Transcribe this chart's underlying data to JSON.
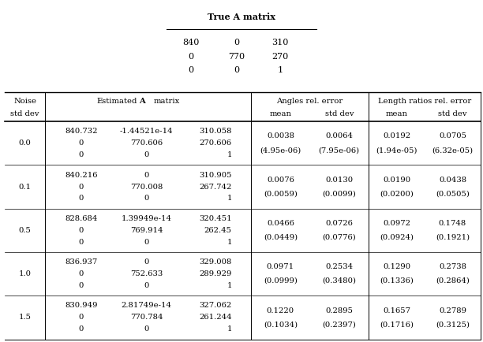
{
  "true_A_title": "True A matrix",
  "true_A_matrix": [
    [
      "840",
      "0",
      "310"
    ],
    [
      "0",
      "770",
      "270"
    ],
    [
      "0",
      "0",
      "1"
    ]
  ],
  "col_headers": {
    "noise": [
      "Noise",
      "std dev"
    ],
    "A": [
      "Estimated A matrix",
      ""
    ],
    "ang_mean": [
      "Angles rel. error",
      "mean"
    ],
    "ang_std": [
      "",
      "std dev"
    ],
    "len_mean": [
      "Length ratios rel. error",
      "mean"
    ],
    "len_std": [
      "",
      "std dev"
    ]
  },
  "rows": [
    {
      "noise": "0.0",
      "A_r1": [
        "840.732",
        "-1.44521e-14",
        "310.058"
      ],
      "A_r2": [
        "0",
        "770.606",
        "270.606"
      ],
      "A_r3": [
        "0",
        "0",
        "1"
      ],
      "ang_mean": [
        "0.0038",
        "(4.95e-06)"
      ],
      "ang_std": [
        "0.0064",
        "(7.95e-06)"
      ],
      "len_mean": [
        "0.0192",
        "(1.94e-05)"
      ],
      "len_std": [
        "0.0705",
        "(6.32e-05)"
      ]
    },
    {
      "noise": "0.1",
      "A_r1": [
        "840.216",
        "0",
        "310.905"
      ],
      "A_r2": [
        "0",
        "770.008",
        "267.742"
      ],
      "A_r3": [
        "0",
        "0",
        "1"
      ],
      "ang_mean": [
        "0.0076",
        "(0.0059)"
      ],
      "ang_std": [
        "0.0130",
        "(0.0099)"
      ],
      "len_mean": [
        "0.0190",
        "(0.0200)"
      ],
      "len_std": [
        "0.0438",
        "(0.0505)"
      ]
    },
    {
      "noise": "0.5",
      "A_r1": [
        "828.684",
        "1.39949e-14",
        "320.451"
      ],
      "A_r2": [
        "0",
        "769.914",
        "262.45"
      ],
      "A_r3": [
        "0",
        "0",
        "1"
      ],
      "ang_mean": [
        "0.0466",
        "(0.0449)"
      ],
      "ang_std": [
        "0.0726",
        "(0.0776)"
      ],
      "len_mean": [
        "0.0972",
        "(0.0924)"
      ],
      "len_std": [
        "0.1748",
        "(0.1921)"
      ]
    },
    {
      "noise": "1.0",
      "A_r1": [
        "836.937",
        "0",
        "329.008"
      ],
      "A_r2": [
        "0",
        "752.633",
        "289.929"
      ],
      "A_r3": [
        "0",
        "0",
        "1"
      ],
      "ang_mean": [
        "0.0971",
        "(0.0999)"
      ],
      "ang_std": [
        "0.2534",
        "(0.3480)"
      ],
      "len_mean": [
        "0.1290",
        "(0.1336)"
      ],
      "len_std": [
        "0.2738",
        "(0.2864)"
      ]
    },
    {
      "noise": "1.5",
      "A_r1": [
        "830.949",
        "2.81749e-14",
        "327.062"
      ],
      "A_r2": [
        "0",
        "770.784",
        "261.244"
      ],
      "A_r3": [
        "0",
        "0",
        "1"
      ],
      "ang_mean": [
        "0.1220",
        "(0.1034)"
      ],
      "ang_std": [
        "0.2895",
        "(0.2397)"
      ],
      "len_mean": [
        "0.1657",
        "(0.1716)"
      ],
      "len_std": [
        "0.2789",
        "(0.3125)"
      ]
    }
  ],
  "fig_w": 6.12,
  "fig_h": 4.34,
  "dpi": 100,
  "fs": 7.2,
  "fs_header": 8.0
}
